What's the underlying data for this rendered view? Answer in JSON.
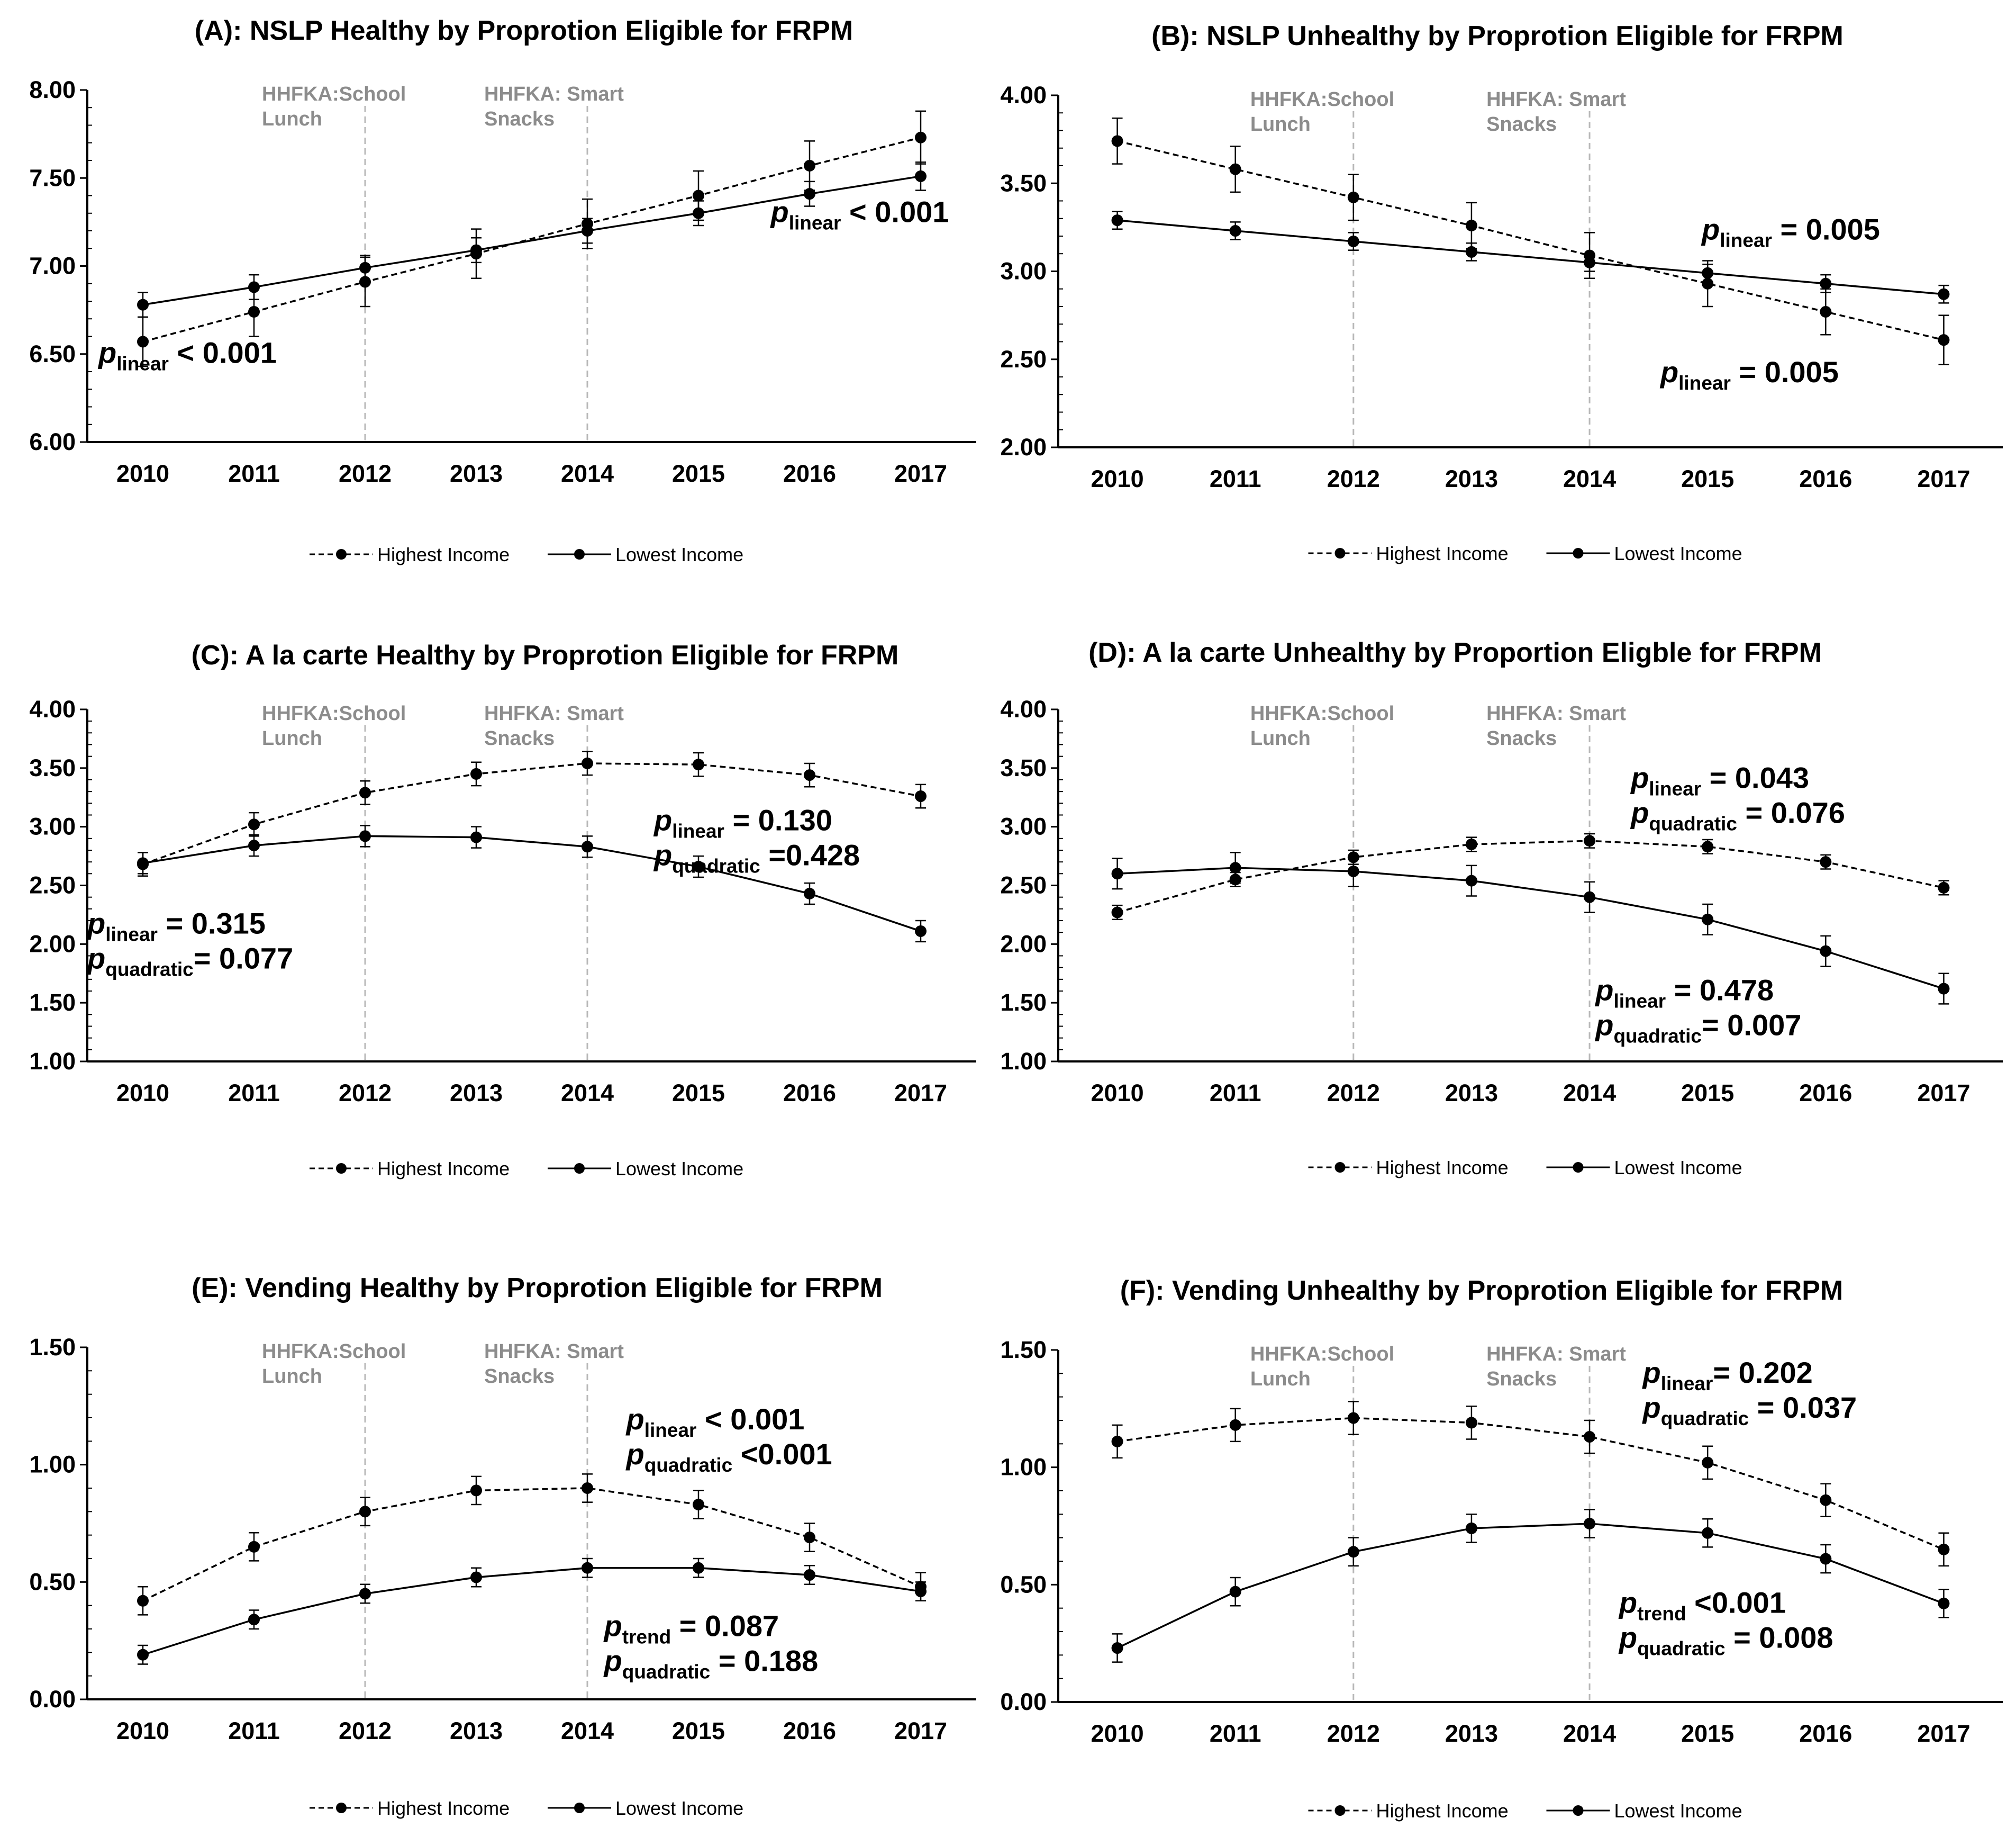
{
  "legend": {
    "series_a": "Highest Income",
    "series_b": "Lowest Income"
  },
  "events": [
    {
      "year": 2012,
      "label_lines": [
        "HHFKA:School",
        "Lunch"
      ]
    },
    {
      "year": 2014,
      "label_lines": [
        "HHFKA:  Smart",
        "Snacks"
      ]
    }
  ],
  "chart_data": [
    {
      "id": "A",
      "type": "line",
      "title": "(A): NSLP Healthy by Proprotion Eligible for FRPM",
      "x": [
        2010,
        2011,
        2012,
        2013,
        2014,
        2015,
        2016,
        2017
      ],
      "ylim": [
        6.0,
        8.0
      ],
      "yticks": [
        "6.00",
        "6.50",
        "7.00",
        "7.50",
        "8.00"
      ],
      "series": [
        {
          "name": "Highest Income",
          "style": "dashed",
          "values": [
            6.57,
            6.74,
            6.91,
            7.07,
            7.24,
            7.4,
            7.57,
            7.73
          ],
          "err": [
            0.14,
            0.14,
            0.14,
            0.14,
            0.14,
            0.14,
            0.14,
            0.15
          ]
        },
        {
          "name": "Lowest Income",
          "style": "solid",
          "values": [
            6.78,
            6.88,
            6.99,
            7.09,
            7.2,
            7.3,
            7.41,
            7.51
          ],
          "err": [
            0.07,
            0.07,
            0.07,
            0.07,
            0.07,
            0.07,
            0.07,
            0.08
          ]
        }
      ],
      "annotations": [
        {
          "lines": [
            {
              "sub": "linear",
              "rest": " < 0.001"
            }
          ],
          "x": 2016.15,
          "y": 7.25
        },
        {
          "lines": [
            {
              "sub": "linear",
              "rest": " < 0.001"
            }
          ],
          "x": 2010.1,
          "y": 6.45
        }
      ]
    },
    {
      "id": "B",
      "type": "line",
      "title": "(B): NSLP Unhealthy by Proprotion Eligible for FRPM",
      "x": [
        2010,
        2011,
        2012,
        2013,
        2014,
        2015,
        2016,
        2017
      ],
      "ylim": [
        2.0,
        4.0
      ],
      "yticks": [
        "2.00",
        "2.50",
        "3.00",
        "3.50",
        "4.00"
      ],
      "series": [
        {
          "name": "Highest Income",
          "style": "dashed",
          "values": [
            3.74,
            3.58,
            3.42,
            3.26,
            3.09,
            2.93,
            2.77,
            2.61
          ],
          "err": [
            0.13,
            0.13,
            0.13,
            0.13,
            0.13,
            0.13,
            0.13,
            0.14
          ]
        },
        {
          "name": "Lowest Income",
          "style": "solid",
          "values": [
            3.29,
            3.23,
            3.17,
            3.11,
            3.05,
            2.99,
            2.93,
            2.87
          ],
          "err": [
            0.05,
            0.05,
            0.05,
            0.05,
            0.05,
            0.05,
            0.05,
            0.05
          ]
        }
      ],
      "annotations": [
        {
          "lines": [
            {
              "sub": "linear",
              "rest": " = 0.005"
            }
          ],
          "x": 2015.45,
          "y": 3.18
        },
        {
          "lines": [
            {
              "sub": "linear",
              "rest": " = 0.005"
            }
          ],
          "x": 2015.1,
          "y": 2.37
        }
      ]
    },
    {
      "id": "C",
      "type": "line",
      "title": "(C): A la carte Healthy by Proprotion Eligible for FRPM",
      "x": [
        2010,
        2011,
        2012,
        2013,
        2014,
        2015,
        2016,
        2017
      ],
      "ylim": [
        1.0,
        4.0
      ],
      "yticks": [
        "1.00",
        "1.50",
        "2.00",
        "2.50",
        "3.00",
        "3.50",
        "4.00"
      ],
      "series": [
        {
          "name": "Highest Income",
          "style": "dashed",
          "values": [
            2.68,
            3.02,
            3.29,
            3.45,
            3.54,
            3.53,
            3.44,
            3.26
          ],
          "err": [
            0.1,
            0.1,
            0.1,
            0.1,
            0.1,
            0.1,
            0.1,
            0.1
          ]
        },
        {
          "name": "Lowest Income",
          "style": "solid",
          "values": [
            2.69,
            2.84,
            2.92,
            2.91,
            2.83,
            2.66,
            2.43,
            2.11
          ],
          "err": [
            0.09,
            0.09,
            0.09,
            0.09,
            0.09,
            0.09,
            0.09,
            0.09
          ]
        }
      ],
      "annotations": [
        {
          "lines": [
            {
              "sub": "linear",
              "rest": " = 0.130"
            },
            {
              "sub": "quadratic",
              "rest": " =0.428"
            }
          ],
          "x": 2015.1,
          "y": 2.97
        },
        {
          "lines": [
            {
              "sub": "linear",
              "rest": " = 0.315"
            },
            {
              "sub": "quadratic",
              "rest": "= 0.077"
            }
          ],
          "x": 2010.0,
          "y": 2.09
        }
      ]
    },
    {
      "id": "D",
      "type": "line",
      "title": "(D): A la carte Unhealthy by Proportion Eligble for FRPM",
      "x": [
        2010,
        2011,
        2012,
        2013,
        2014,
        2015,
        2016,
        2017
      ],
      "ylim": [
        1.0,
        4.0
      ],
      "yticks": [
        "1.00",
        "1.50",
        "2.00",
        "2.50",
        "3.00",
        "3.50",
        "4.00"
      ],
      "series": [
        {
          "name": "Highest Income",
          "style": "dashed",
          "values": [
            2.27,
            2.55,
            2.74,
            2.85,
            2.88,
            2.83,
            2.7,
            2.48
          ],
          "err": [
            0.06,
            0.06,
            0.06,
            0.06,
            0.06,
            0.06,
            0.06,
            0.06
          ]
        },
        {
          "name": "Lowest Income",
          "style": "solid",
          "values": [
            2.6,
            2.65,
            2.62,
            2.54,
            2.4,
            2.21,
            1.94,
            1.62
          ],
          "err": [
            0.13,
            0.13,
            0.13,
            0.13,
            0.13,
            0.13,
            0.13,
            0.13
          ]
        }
      ],
      "annotations": [
        {
          "lines": [
            {
              "sub": "linear",
              "rest": " = 0.043"
            },
            {
              "sub": "quadratic",
              "rest": " = 0.076"
            }
          ],
          "x": 2014.85,
          "y": 3.33
        },
        {
          "lines": [
            {
              "sub": "linear",
              "rest": " = 0.478"
            },
            {
              "sub": "quadratic",
              "rest": "= 0.007"
            }
          ],
          "x": 2014.55,
          "y": 1.52
        }
      ]
    },
    {
      "id": "E",
      "type": "line",
      "title": "(E): Vending Healthy by Proprotion Eligible for FRPM",
      "x": [
        2010,
        2011,
        2012,
        2013,
        2014,
        2015,
        2016,
        2017
      ],
      "ylim": [
        0.0,
        1.5
      ],
      "yticks": [
        "0.00",
        "0.50",
        "1.00",
        "1.50"
      ],
      "series": [
        {
          "name": "Highest Income",
          "style": "dashed",
          "values": [
            0.42,
            0.65,
            0.8,
            0.89,
            0.9,
            0.83,
            0.69,
            0.48
          ],
          "err": [
            0.06,
            0.06,
            0.06,
            0.06,
            0.06,
            0.06,
            0.06,
            0.06
          ]
        },
        {
          "name": "Lowest Income",
          "style": "solid",
          "values": [
            0.19,
            0.34,
            0.45,
            0.52,
            0.56,
            0.56,
            0.53,
            0.46
          ],
          "err": [
            0.04,
            0.04,
            0.04,
            0.04,
            0.04,
            0.04,
            0.04,
            0.04
          ]
        }
      ],
      "annotations": [
        {
          "lines": [
            {
              "sub": "linear",
              "rest": " < 0.001"
            },
            {
              "sub": "quadratic",
              "rest": " <0.001"
            }
          ],
          "x": 2014.85,
          "y": 1.15
        },
        {
          "lines": [
            {
              "sub": "trend",
              "rest": " = 0.087"
            },
            {
              "sub": "quadratic",
              "rest": " = 0.188"
            }
          ],
          "x": 2014.65,
          "y": 0.27
        }
      ]
    },
    {
      "id": "F",
      "type": "line",
      "title": "(F): Vending Unhealthy by Proprotion Eligible for FRPM",
      "x": [
        2010,
        2011,
        2012,
        2013,
        2014,
        2015,
        2016,
        2017
      ],
      "ylim": [
        0.0,
        1.5
      ],
      "yticks": [
        "0.00",
        "0.50",
        "1.00",
        "1.50"
      ],
      "series": [
        {
          "name": "Highest Income",
          "style": "dashed",
          "values": [
            1.11,
            1.18,
            1.21,
            1.19,
            1.13,
            1.02,
            0.86,
            0.65
          ],
          "err": [
            0.07,
            0.07,
            0.07,
            0.07,
            0.07,
            0.07,
            0.07,
            0.07
          ]
        },
        {
          "name": "Lowest Income",
          "style": "solid",
          "values": [
            0.23,
            0.47,
            0.64,
            0.74,
            0.76,
            0.72,
            0.61,
            0.42
          ],
          "err": [
            0.06,
            0.06,
            0.06,
            0.06,
            0.06,
            0.06,
            0.06,
            0.06
          ]
        }
      ],
      "annotations": [
        {
          "lines": [
            {
              "sub": "linear",
              "rest": "= 0.202"
            },
            {
              "sub": "quadratic",
              "rest": " = 0.037"
            }
          ],
          "x": 2014.95,
          "y": 1.36
        },
        {
          "lines": [
            {
              "sub": "trend",
              "rest": " <0.001"
            },
            {
              "sub": "quadratic",
              "rest": " = 0.008"
            }
          ],
          "x": 2014.75,
          "y": 0.38
        }
      ]
    }
  ]
}
